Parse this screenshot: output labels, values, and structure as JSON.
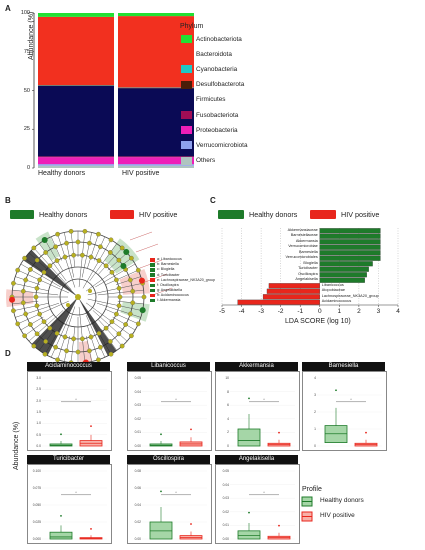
{
  "panel_labels": {
    "a": "A",
    "b": "B",
    "c": "C",
    "d": "D"
  },
  "colors": {
    "healthy": "#1e7b2a",
    "hiv": "#e8261c",
    "healthy_box_fill": "#a5d6a7",
    "hiv_box_fill": "#f8b0a8"
  },
  "chart_data": [
    {
      "type": "bar",
      "stacked": true,
      "ylabel": "Abundance (%)",
      "ylim": [
        0,
        100
      ],
      "y_ticks": [
        "0",
        "25",
        "50",
        "75",
        "100"
      ],
      "categories": [
        "Healthy donors",
        "HIV positive"
      ],
      "legend_title": "Phylum",
      "legend_position": "right",
      "series": [
        {
          "name": "Others",
          "color": "#b0c4c0",
          "values": [
            1.5,
            1.5
          ]
        },
        {
          "name": "Verrucomicrobiota",
          "color": "#8ea0ee",
          "values": [
            1.0,
            1.0
          ]
        },
        {
          "name": "Proteobacteria",
          "color": "#ee1fb8",
          "values": [
            4.5,
            4.5
          ]
        },
        {
          "name": "Fusobacteriota",
          "color": "#a10d55",
          "values": [
            0.5,
            0.5
          ]
        },
        {
          "name": "Firmicutes",
          "color": "#0a0a55",
          "values": [
            45.5,
            44.0
          ]
        },
        {
          "name": "Desulfobacterota",
          "color": "#4a1d08",
          "values": [
            0.3,
            0.3
          ]
        },
        {
          "name": "Cyanobacteria",
          "color": "#1ec8c6",
          "values": [
            0.2,
            0.2
          ]
        },
        {
          "name": "Bacteroidota",
          "color": "#f2301f",
          "values": [
            44.0,
            46.0
          ]
        },
        {
          "name": "Actinobacteriota",
          "color": "#22e033",
          "values": [
            2.5,
            2.0
          ]
        }
      ]
    },
    {
      "type": "bar",
      "orientation": "horizontal",
      "xlabel": "LDA SCORE (log 10)",
      "xlim": [
        -5,
        4
      ],
      "x_ticks": [
        "-5",
        "-4",
        "-3",
        "-2",
        "-1",
        "0",
        "1",
        "2",
        "3",
        "4"
      ],
      "legend": [
        "Healthy donors",
        "HIV positive"
      ],
      "legend_position": "top",
      "bars": [
        {
          "label": "Akkermansiaceae",
          "value": 3.1,
          "group": "Healthy donors"
        },
        {
          "label": "Barnesiellaceae",
          "value": 3.1,
          "group": "Healthy donors"
        },
        {
          "label": "Akkermansia",
          "value": 3.1,
          "group": "Healthy donors"
        },
        {
          "label": "Verrucomicrobiae",
          "value": 3.1,
          "group": "Healthy donors"
        },
        {
          "label": "Barnesiella",
          "value": 3.1,
          "group": "Healthy donors"
        },
        {
          "label": "Verrucomicrobiales",
          "value": 3.1,
          "group": "Healthy donors"
        },
        {
          "label": "Blogiella",
          "value": 2.7,
          "group": "Healthy donors"
        },
        {
          "label": "Turicibacter",
          "value": 2.5,
          "group": "Healthy donors"
        },
        {
          "label": "Oscillospira",
          "value": 2.4,
          "group": "Healthy donors"
        },
        {
          "label": "Angelakisella",
          "value": 2.3,
          "group": "Healthy donors"
        },
        {
          "label": "Libanicoccus",
          "value": -2.6,
          "group": "HIV positive"
        },
        {
          "label": "Atopobiaceae",
          "value": -2.7,
          "group": "HIV positive"
        },
        {
          "label": "Lachnospiraceae_NK3A20_group",
          "value": -2.9,
          "group": "HIV positive"
        },
        {
          "label": "Acidaminococcus",
          "value": -4.2,
          "group": "HIV positive"
        }
      ]
    }
  ],
  "cladogram": {
    "legend": [
      "Healthy donors",
      "HIV positive"
    ],
    "key_items": [
      {
        "text": "a: Libanicoccus",
        "group": "HIV positive"
      },
      {
        "text": "b: Barnesiella",
        "group": "Healthy donors"
      },
      {
        "text": "c: Blogiella",
        "group": "Healthy donors"
      },
      {
        "text": "d: Turicibacter",
        "group": "Healthy donors"
      },
      {
        "text": "e: Lachnospiraceae_NK3A20_group",
        "group": "HIV positive"
      },
      {
        "text": "f: Oscillospira",
        "group": "Healthy donors"
      },
      {
        "text": "g: Angelakisella",
        "group": "Healthy donors"
      },
      {
        "text": "h: Acidaminococcus",
        "group": "HIV positive"
      },
      {
        "text": "i: Akkermansia",
        "group": "Healthy donors"
      }
    ]
  },
  "boxplots": {
    "ylabel": "Abundance (%)",
    "legend_title": "Profile",
    "legend": [
      "Healthy donors",
      "HIV positive"
    ],
    "panels": [
      {
        "title": "Acidaminococcus",
        "y_ticks": [
          "0.0",
          "0.5",
          "1.0",
          "1.5",
          "2.0",
          "2.5",
          "3.0"
        ]
      },
      {
        "title": "Libanicoccus",
        "y_ticks": [
          "0.00",
          "0.01",
          "0.02",
          "0.03",
          "0.04",
          "0.05"
        ]
      },
      {
        "title": "Akkermansia",
        "y_ticks": [
          "0",
          "2",
          "4",
          "6",
          "8",
          "10"
        ]
      },
      {
        "title": "Barnesiella",
        "y_ticks": [
          "0",
          "1",
          "2",
          "3",
          "4"
        ]
      },
      {
        "title": "Turicibacter",
        "y_ticks": [
          "0.000",
          "0.025",
          "0.050",
          "0.075",
          "0.100"
        ]
      },
      {
        "title": "Oscillospira",
        "y_ticks": [
          "0.00",
          "0.02",
          "0.04",
          "0.06",
          "0.08"
        ]
      },
      {
        "title": "Angelakisella",
        "y_ticks": [
          "0.00",
          "0.01",
          "0.02",
          "0.03",
          "0.04",
          "0.05"
        ]
      }
    ]
  }
}
